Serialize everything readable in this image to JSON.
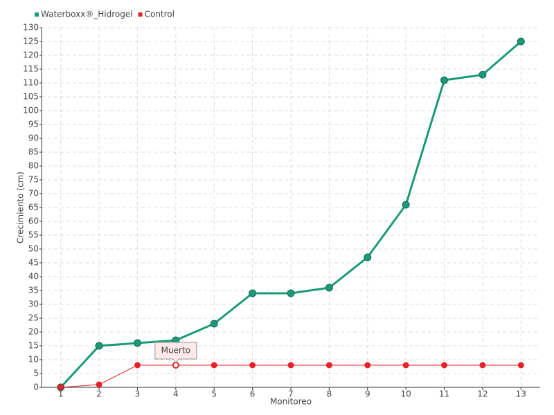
{
  "chart_data": {
    "type": "line",
    "x_label": "Monitoreo",
    "y_label": "Crecimiento (cm)",
    "x": [
      1,
      2,
      3,
      4,
      5,
      6,
      7,
      8,
      9,
      10,
      11,
      12,
      13
    ],
    "xlim": [
      0.5,
      13.5
    ],
    "xticks": [
      1,
      2,
      3,
      4,
      5,
      6,
      7,
      8,
      9,
      10,
      11,
      12,
      13
    ],
    "ylim": [
      0,
      130
    ],
    "yticks": [
      0,
      5,
      10,
      15,
      20,
      25,
      30,
      35,
      40,
      45,
      50,
      55,
      60,
      65,
      70,
      75,
      80,
      85,
      90,
      95,
      100,
      105,
      110,
      115,
      120,
      125,
      130
    ],
    "grid": true,
    "legend": "top-left",
    "series": [
      {
        "name": "Waterboxx®_Hidrogel",
        "color": "#1a9a78",
        "values": [
          0,
          15,
          16,
          17,
          23,
          34,
          34,
          36,
          47,
          66,
          111,
          113,
          125
        ]
      },
      {
        "name": "Control",
        "color": "#e8202a",
        "values": [
          0,
          1,
          8,
          8,
          8,
          8,
          8,
          8,
          8,
          8,
          8,
          8,
          8
        ]
      }
    ],
    "annotations": [
      {
        "text": "Muerto",
        "x": 4,
        "y": 8
      }
    ]
  }
}
